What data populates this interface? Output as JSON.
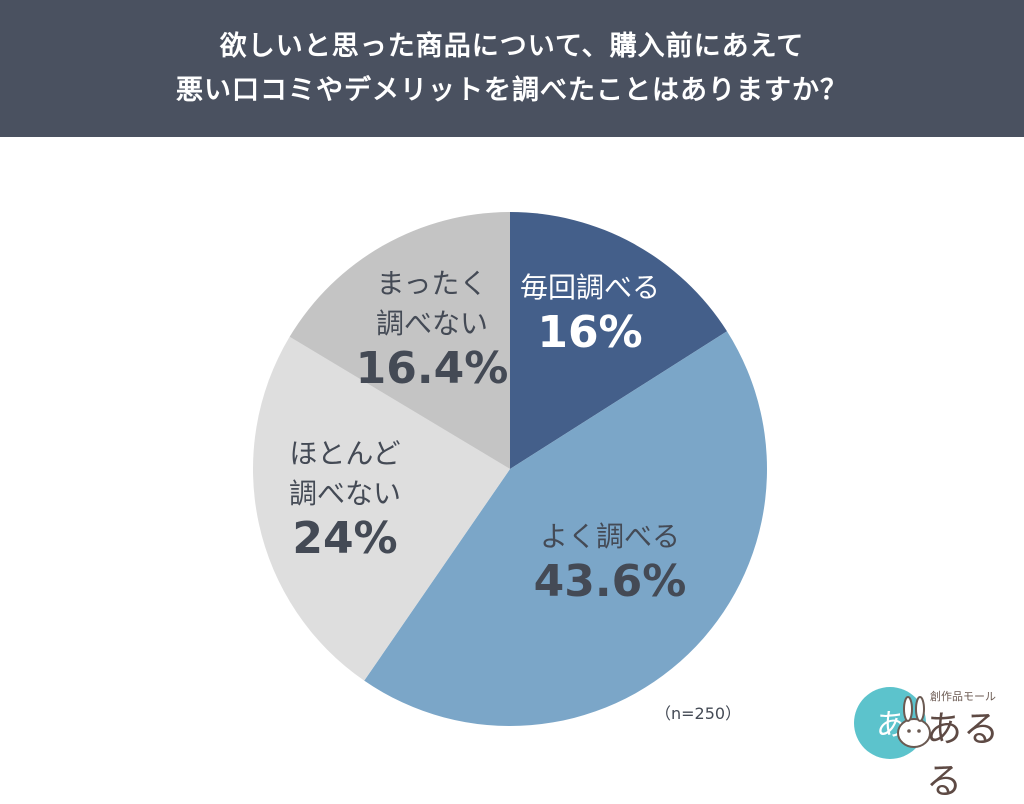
{
  "header": {
    "title_line1": "欲しいと思った商品について、購入前にあえて",
    "title_line2": "悪い口コミやデメリットを調べたことはありますか？"
  },
  "chart_data": {
    "type": "pie",
    "slices": [
      {
        "label_lines": [
          "毎回調べる"
        ],
        "value": 16,
        "display": "16%",
        "color": "#445f8a",
        "text_color": "#ffffff"
      },
      {
        "label_lines": [
          "よく調べる"
        ],
        "value": 43.6,
        "display": "43.6%",
        "color": "#7ba6c8",
        "text_color": "#444a55"
      },
      {
        "label_lines": [
          "ほとんど",
          "調べない"
        ],
        "value": 24,
        "display": "24%",
        "color": "#dedede",
        "text_color": "#444a55"
      },
      {
        "label_lines": [
          "まったく",
          "調べない"
        ],
        "value": 16.4,
        "display": "16.4%",
        "color": "#c4c4c4",
        "text_color": "#444a55"
      }
    ]
  },
  "note": "（n=250）",
  "logo": {
    "sub": "創作品モール",
    "main": "あるる",
    "badge": "あ"
  }
}
